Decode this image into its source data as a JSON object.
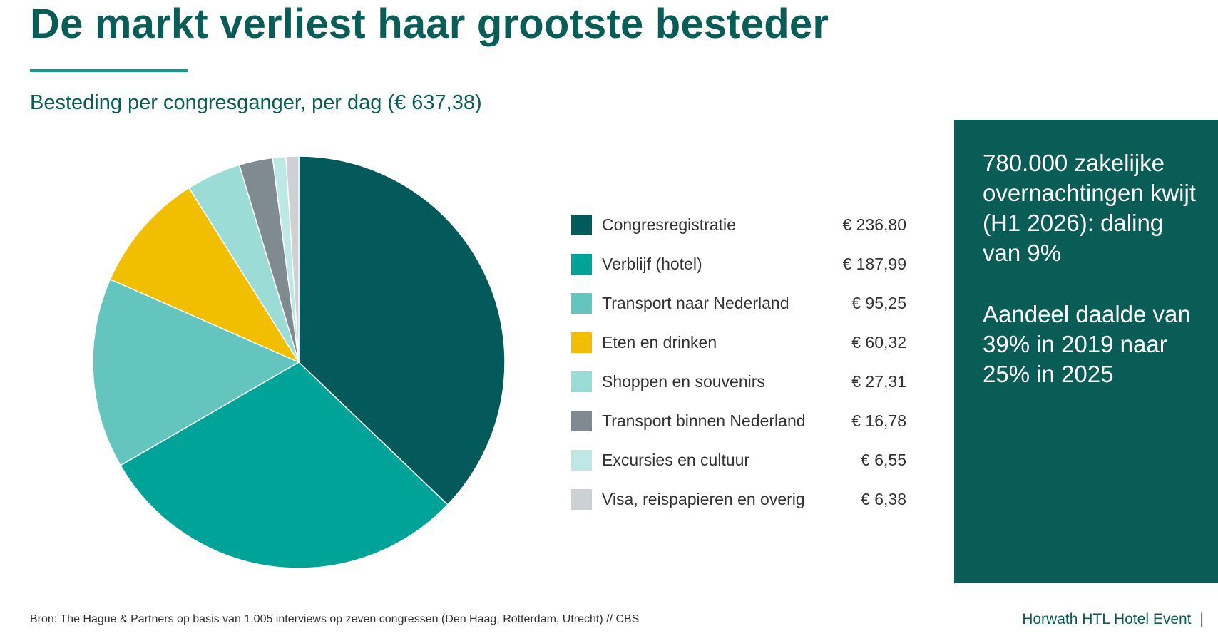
{
  "page": {
    "title": "De markt verliest haar grootste besteder",
    "subtitle": "Besteding per congresganger, per dag (€ 637,38)",
    "source": "Bron: The Hague & Partners op basis van 1.005 interviews op zeven congressen (Den Haag, Rotterdam, Utrecht) // CBS",
    "brand": "Horwath HTL Hotel Event",
    "brand_separator": "|",
    "colors": {
      "title": "#0a5c57",
      "accent_rule": "#0f9c8f",
      "panel_bg": "#0a5c57"
    }
  },
  "panel": {
    "text1": "780.000 zakelijke overnachtingen kwijt (H1 2026): daling van 9%",
    "text2": "Aandeel daalde van 39% in 2019 naar 25% in 2025"
  },
  "chart_data": {
    "type": "pie",
    "categories": [
      "Congresregistratie",
      "Verblijf (hotel)",
      "Transport naar Nederland",
      "Eten en drinken",
      "Shoppen en souvenirs",
      "Transport binnen Nederland",
      "Excursies en cultuur",
      "Visa, reispapieren en overig"
    ],
    "values": [
      236.8,
      187.99,
      95.25,
      60.32,
      27.31,
      16.78,
      6.55,
      6.38
    ],
    "value_labels": [
      "€ 236,80",
      "€ 187,99",
      "€ 95,25",
      "€ 60,32",
      "€ 27,31",
      "€ 16,78",
      "€ 6,55",
      "€ 6,38"
    ],
    "colors": [
      "#04595a",
      "#00a397",
      "#63c5bd",
      "#f2be00",
      "#9bdcd6",
      "#808b91",
      "#bde8e5",
      "#cdd1d4"
    ],
    "legend_position": "right",
    "start_angle_deg": 0,
    "direction": "clockwise"
  }
}
